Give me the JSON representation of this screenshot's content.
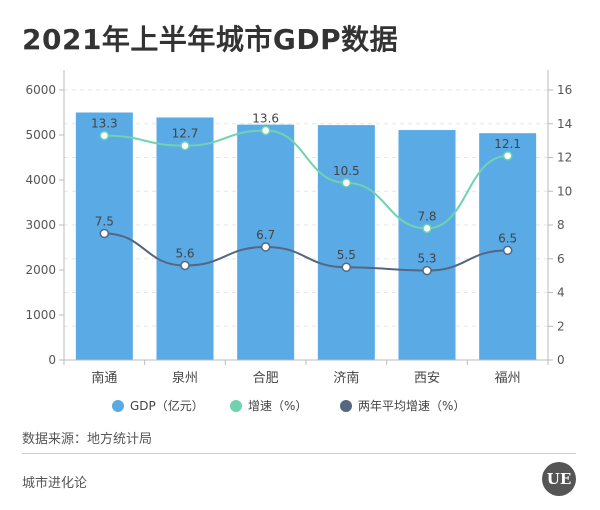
{
  "title": "2021年上半年城市GDP数据",
  "source": "数据来源：地方统计局",
  "footer": "城市进化论",
  "logo_text": "UE",
  "colors": {
    "bar": "#5aaae6",
    "growth": "#6fd3ad",
    "avg": "#556680",
    "axis": "#bbbbbb",
    "text": "#555555"
  },
  "chart_data": {
    "type": "bar",
    "categories": [
      "南通",
      "泉州",
      "合肥",
      "济南",
      "西安",
      "福州"
    ],
    "y_left": {
      "min": 0,
      "max": 6000,
      "ticks": [
        0,
        1000,
        2000,
        3000,
        4000,
        5000,
        6000
      ]
    },
    "y_right": {
      "min": 0,
      "max": 16,
      "ticks": [
        0,
        2,
        4,
        6,
        8,
        10,
        12,
        14,
        16
      ]
    },
    "series": [
      {
        "name": "GDP（亿元）",
        "type": "bar",
        "axis": "left",
        "values": [
          5500,
          5390,
          5230,
          5220,
          5110,
          5040
        ]
      },
      {
        "name": "增速（%）",
        "type": "line",
        "axis": "right",
        "values": [
          13.3,
          12.7,
          13.6,
          10.5,
          7.8,
          12.1
        ],
        "labels": [
          "13.3",
          "12.7",
          "13.6",
          "10.5",
          "7.8",
          "12.1"
        ]
      },
      {
        "name": "两年平均增速（%）",
        "type": "line",
        "axis": "right",
        "values": [
          7.5,
          5.6,
          6.7,
          5.5,
          5.3,
          6.5
        ],
        "labels": [
          "7.5",
          "5.6",
          "6.7",
          "5.5",
          "5.3",
          "6.5"
        ]
      }
    ],
    "legend": [
      "GDP（亿元）",
      "增速（%）",
      "两年平均增速（%）"
    ],
    "legend_position": "bottom"
  }
}
